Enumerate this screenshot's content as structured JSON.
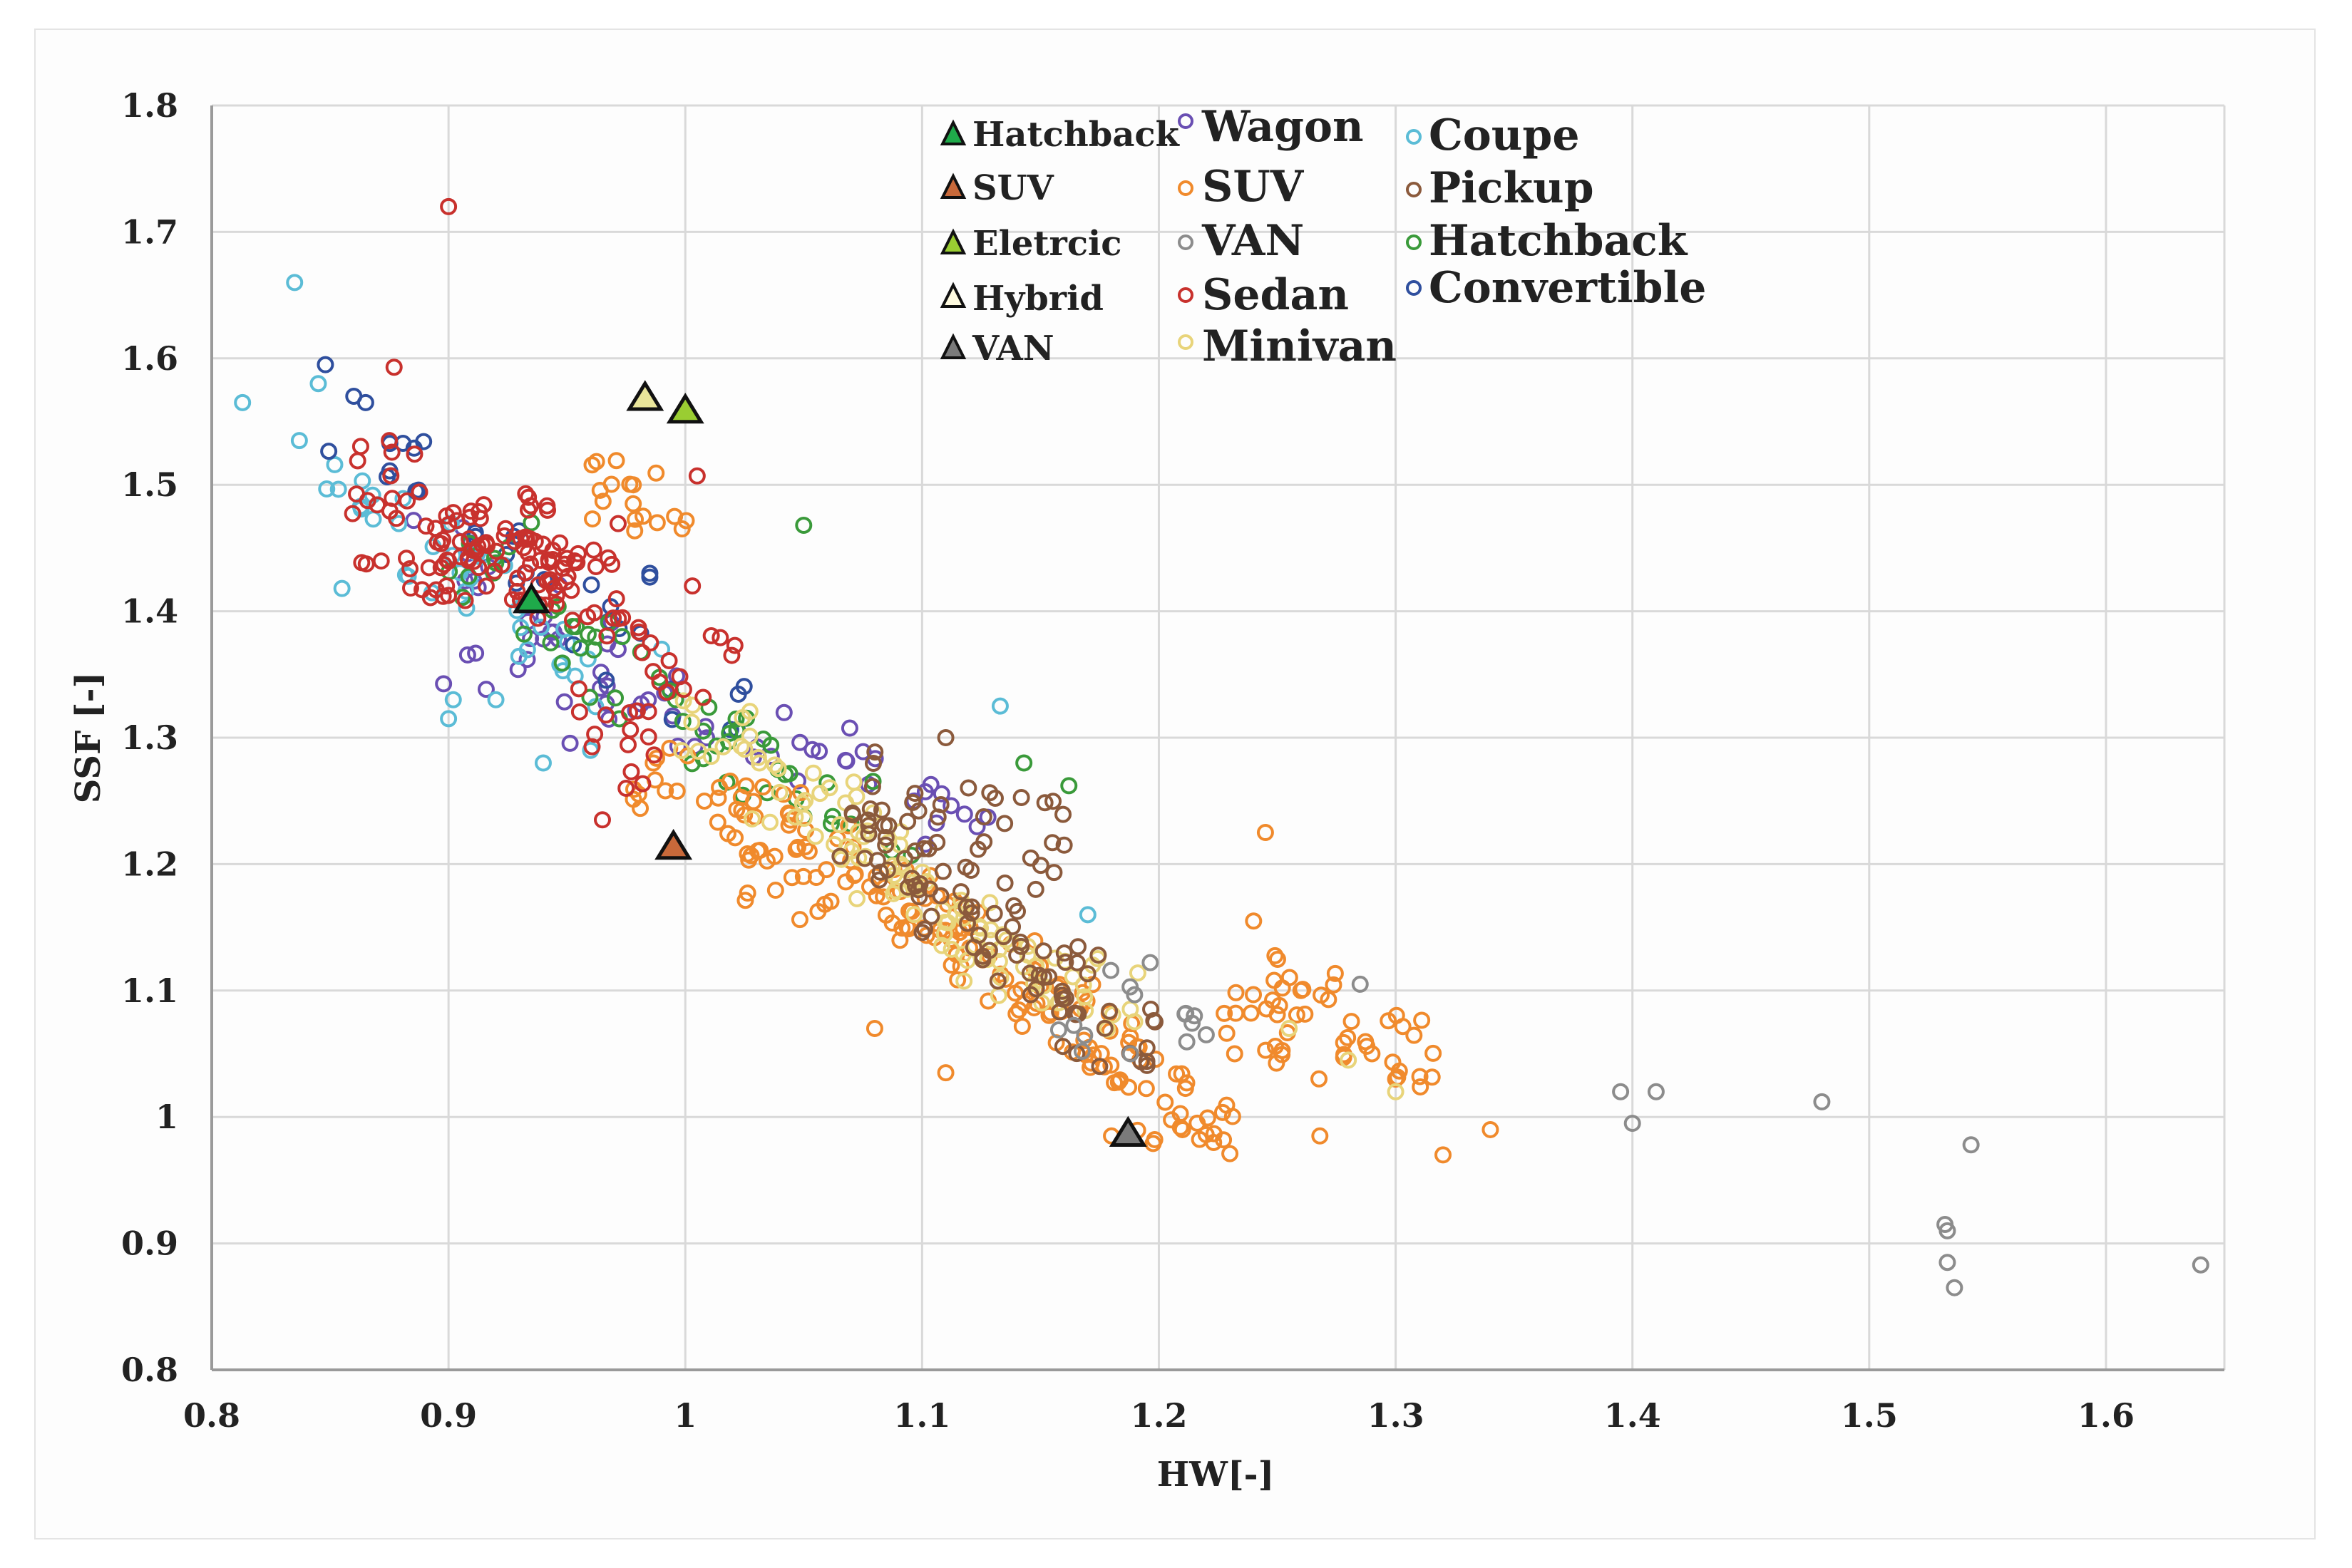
{
  "chart_data": {
    "type": "scatter",
    "title": "",
    "xlabel": "HW[-]",
    "ylabel": "SSF [-]",
    "xlim": [
      0.8,
      1.65
    ],
    "ylim": [
      0.8,
      1.8
    ],
    "x_ticks": [
      "0.8",
      "0.9",
      "1",
      "1.1",
      "1.2",
      "1.3",
      "1.4",
      "1.5",
      "1.6"
    ],
    "y_ticks": [
      "0.8",
      "0.9",
      "1",
      "1.1",
      "1.2",
      "1.3",
      "1.4",
      "1.5",
      "1.6",
      "1.7",
      "1.8"
    ],
    "grid": true,
    "legend_position": "top-center",
    "reference_points": [
      {
        "name": "Hatchback",
        "x": 0.935,
        "y": 1.41,
        "color": "#1faa4a"
      },
      {
        "name": "SUV",
        "x": 0.995,
        "y": 1.215,
        "color": "#c8693a"
      },
      {
        "name": "Eletrcic",
        "x": 1.0,
        "y": 1.56,
        "color": "#9acd32"
      },
      {
        "name": "Hybrid",
        "x": 0.983,
        "y": 1.57,
        "color": "#e9e59a"
      },
      {
        "name": "VAN",
        "x": 1.187,
        "y": 0.988,
        "color": "#7a7a7a"
      }
    ],
    "series": [
      {
        "name": "Wagon",
        "color": "#6a4fb3",
        "anchors": [
          [
            0.9,
            1.44
          ],
          [
            0.93,
            1.41
          ],
          [
            0.95,
            1.38
          ],
          [
            0.97,
            1.35
          ],
          [
            1.0,
            1.32
          ],
          [
            1.04,
            1.3
          ],
          [
            1.07,
            1.28
          ],
          [
            1.09,
            1.26
          ],
          [
            1.12,
            1.22
          ],
          [
            0.92,
            1.34
          ],
          [
            0.96,
            1.32
          ]
        ]
      },
      {
        "name": "SUV",
        "color": "#f08a2c",
        "anchors": [
          [
            1.0,
            1.26
          ],
          [
            1.03,
            1.24
          ],
          [
            1.06,
            1.21
          ],
          [
            1.09,
            1.18
          ],
          [
            1.11,
            1.15
          ],
          [
            1.13,
            1.12
          ],
          [
            1.15,
            1.09
          ],
          [
            1.17,
            1.06
          ],
          [
            1.19,
            1.03
          ],
          [
            1.21,
            1.0
          ],
          [
            1.25,
            1.07
          ],
          [
            1.27,
            1.09
          ],
          [
            1.3,
            1.06
          ],
          [
            0.98,
            1.49
          ],
          [
            1.04,
            1.19
          ]
        ],
        "outliers": [
          [
            1.245,
            1.225
          ],
          [
            1.24,
            1.155
          ],
          [
            1.232,
            1.05
          ],
          [
            1.268,
            0.985
          ],
          [
            1.32,
            0.97
          ],
          [
            1.34,
            0.99
          ],
          [
            1.3,
            1.03
          ],
          [
            1.29,
            1.05
          ],
          [
            1.26,
            1.1
          ],
          [
            1.18,
            0.985
          ],
          [
            1.21,
            0.99
          ],
          [
            1.11,
            1.035
          ],
          [
            1.08,
            1.07
          ],
          [
            0.978,
            1.5
          ],
          [
            0.978,
            1.485
          ]
        ]
      },
      {
        "name": "VAN",
        "color": "#8c8c8c",
        "anchors": [
          [
            1.19,
            1.08
          ],
          [
            1.205,
            1.09
          ],
          [
            1.16,
            1.08
          ]
        ],
        "outliers": [
          [
            1.395,
            1.02
          ],
          [
            1.4,
            0.995
          ],
          [
            1.41,
            1.02
          ],
          [
            1.48,
            1.012
          ],
          [
            1.543,
            0.978
          ],
          [
            1.532,
            0.915
          ],
          [
            1.533,
            0.91
          ],
          [
            1.533,
            0.885
          ],
          [
            1.536,
            0.865
          ],
          [
            1.64,
            0.883
          ],
          [
            1.285,
            1.105
          ],
          [
            1.215,
            1.08
          ],
          [
            1.22,
            1.065
          ],
          [
            1.188,
            1.05
          ]
        ]
      },
      {
        "name": "Sedan",
        "color": "#c8312d",
        "anchors": [
          [
            0.88,
            1.5
          ],
          [
            0.9,
            1.47
          ],
          [
            0.92,
            1.45
          ],
          [
            0.93,
            1.44
          ],
          [
            0.94,
            1.43
          ],
          [
            0.96,
            1.41
          ],
          [
            0.91,
            1.43
          ],
          [
            0.95,
            1.46
          ],
          [
            0.88,
            1.45
          ],
          [
            0.97,
            1.3
          ],
          [
            1.0,
            1.36
          ]
        ],
        "outliers": [
          [
            0.9,
            1.72
          ],
          [
            0.877,
            1.593
          ],
          [
            0.875,
            1.535
          ],
          [
            1.005,
            1.507
          ],
          [
            0.965,
            1.235
          ],
          [
            0.975,
            1.26
          ],
          [
            1.003,
            1.42
          ]
        ]
      },
      {
        "name": "Minivan",
        "color": "#e8d47a",
        "anchors": [
          [
            1.02,
            1.3
          ],
          [
            1.05,
            1.25
          ],
          [
            1.07,
            1.22
          ],
          [
            1.09,
            1.19
          ],
          [
            1.11,
            1.16
          ],
          [
            1.13,
            1.13
          ],
          [
            1.15,
            1.11
          ],
          [
            1.17,
            1.1
          ]
        ],
        "outliers": [
          [
            1.28,
            1.045
          ],
          [
            1.3,
            1.02
          ],
          [
            1.255,
            1.07
          ]
        ]
      },
      {
        "name": "Coupe",
        "color": "#5bbcd6",
        "anchors": [
          [
            0.86,
            1.5
          ],
          [
            0.88,
            1.47
          ],
          [
            0.9,
            1.44
          ],
          [
            0.92,
            1.41
          ],
          [
            0.94,
            1.38
          ],
          [
            0.95,
            1.36
          ]
        ],
        "outliers": [
          [
            0.835,
            1.66
          ],
          [
            0.813,
            1.565
          ],
          [
            0.845,
            1.58
          ],
          [
            0.837,
            1.535
          ],
          [
            0.855,
            1.418
          ],
          [
            0.9,
            1.315
          ],
          [
            0.902,
            1.33
          ],
          [
            0.92,
            1.33
          ],
          [
            0.94,
            1.28
          ],
          [
            0.96,
            1.29
          ],
          [
            1.133,
            1.325
          ],
          [
            1.17,
            1.16
          ],
          [
            0.99,
            1.37
          ]
        ]
      },
      {
        "name": "Pickup",
        "color": "#8b5a3c",
        "anchors": [
          [
            1.08,
            1.22
          ],
          [
            1.1,
            1.19
          ],
          [
            1.12,
            1.16
          ],
          [
            1.14,
            1.13
          ],
          [
            1.16,
            1.11
          ],
          [
            1.18,
            1.07
          ],
          [
            1.1,
            1.25
          ],
          [
            1.14,
            1.23
          ]
        ],
        "outliers": [
          [
            1.11,
            1.3
          ],
          [
            1.135,
            1.185
          ],
          [
            1.16,
            1.215
          ],
          [
            1.175,
            1.04
          ],
          [
            1.148,
            1.18
          ]
        ]
      },
      {
        "name": "Hatchback",
        "color": "#3a9a3a",
        "anchors": [
          [
            0.92,
            1.43
          ],
          [
            0.94,
            1.4
          ],
          [
            0.96,
            1.37
          ],
          [
            0.98,
            1.34
          ],
          [
            1.0,
            1.31
          ],
          [
            1.02,
            1.29
          ],
          [
            1.04,
            1.27
          ],
          [
            1.08,
            1.24
          ]
        ],
        "outliers": [
          [
            1.05,
            1.468
          ],
          [
            1.143,
            1.28
          ],
          [
            1.162,
            1.262
          ],
          [
            0.935,
            1.47
          ]
        ]
      },
      {
        "name": "Convertible",
        "color": "#2f4f9e",
        "anchors": [
          [
            0.87,
            1.52
          ],
          [
            0.89,
            1.5
          ],
          [
            0.92,
            1.44
          ],
          [
            0.95,
            1.4
          ],
          [
            0.98,
            1.36
          ],
          [
            1.01,
            1.33
          ]
        ],
        "outliers": [
          [
            0.848,
            1.595
          ],
          [
            0.86,
            1.57
          ],
          [
            0.865,
            1.565
          ],
          [
            0.985,
            1.427
          ],
          [
            0.985,
            1.43
          ]
        ]
      }
    ]
  },
  "legend": {
    "triangles": [
      "Hatchback",
      "SUV",
      "Eletrcic",
      "Hybrid",
      "VAN"
    ],
    "circles_col1": [
      "Wagon",
      "SUV",
      "VAN",
      "Sedan",
      "Minivan"
    ],
    "circles_col2": [
      "Coupe",
      "Pickup",
      "Hatchback",
      "Convertible"
    ]
  }
}
